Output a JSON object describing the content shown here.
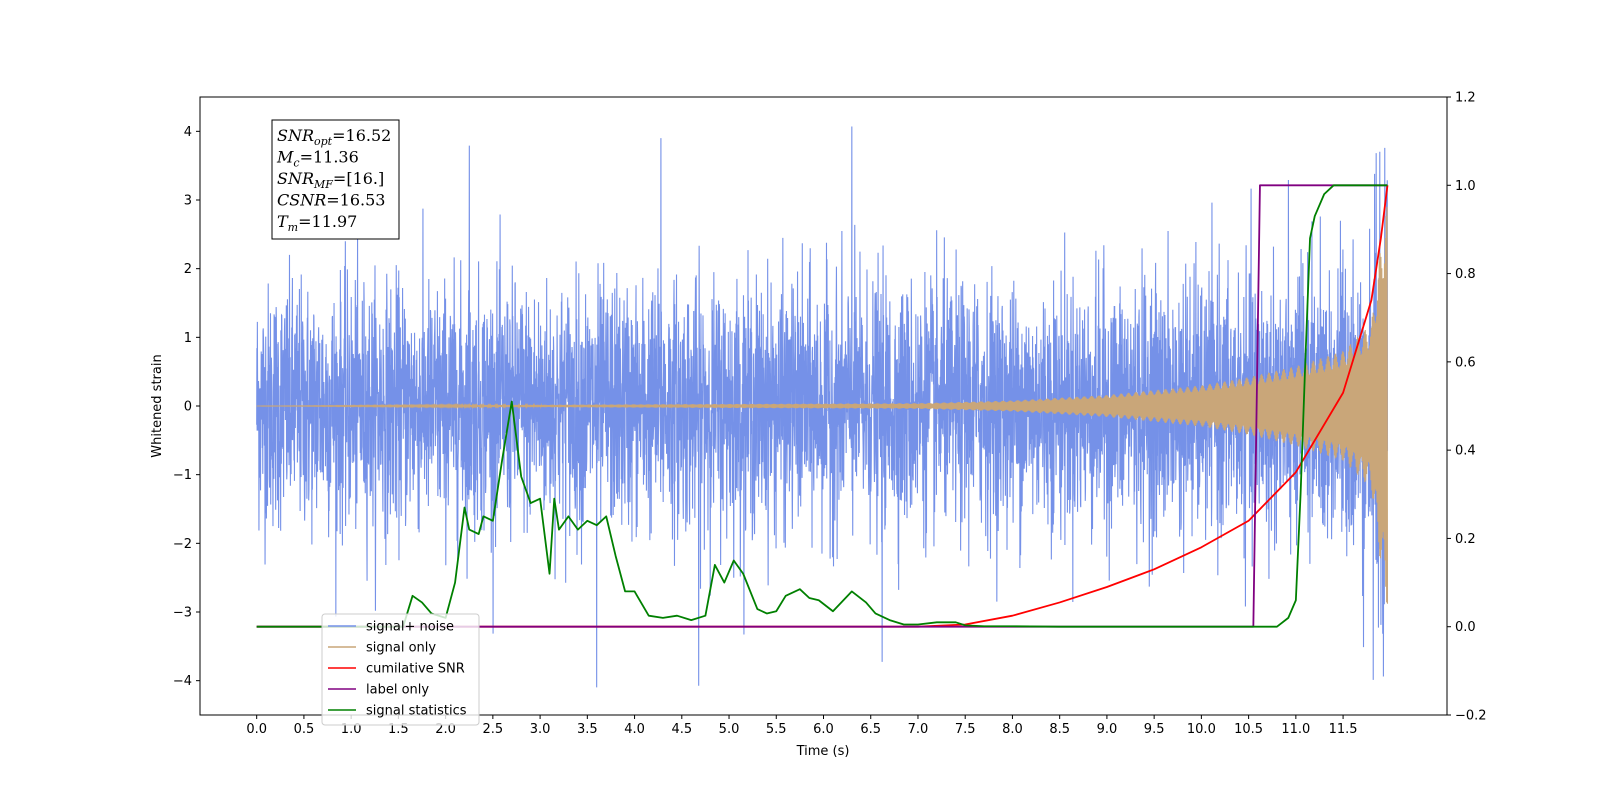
{
  "chart_data": {
    "type": "line",
    "title": "",
    "xlabel": "Time (s)",
    "ylabel": "Whitened strain",
    "ylabel_right": "",
    "xlim": [
      -0.6,
      12.6
    ],
    "ylim": [
      -4.5,
      4.5
    ],
    "ylim_right": [
      -0.2,
      1.2
    ],
    "x_ticks": [
      0.0,
      0.5,
      1.0,
      1.5,
      2.0,
      2.5,
      3.0,
      3.5,
      4.0,
      4.5,
      5.0,
      5.5,
      6.0,
      6.5,
      7.0,
      7.5,
      8.0,
      8.5,
      9.0,
      9.5,
      10.0,
      10.5,
      11.0,
      11.5
    ],
    "x_tick_labels": [
      "0.0",
      "0.5",
      "1.0",
      "1.5",
      "2.0",
      "2.5",
      "3.0",
      "3.5",
      "4.0",
      "4.5",
      "5.0",
      "5.5",
      "6.0",
      "6.5",
      "7.0",
      "7.5",
      "8.0",
      "8.5",
      "9.0",
      "9.5",
      "10.0",
      "10.5",
      "11.0",
      "11.5"
    ],
    "y_ticks": [
      -4,
      -3,
      -2,
      -1,
      0,
      1,
      2,
      3,
      4
    ],
    "y_tick_labels": [
      "−4",
      "−3",
      "−2",
      "−1",
      "0",
      "1",
      "2",
      "3",
      "4"
    ],
    "y_right_ticks": [
      -0.2,
      0.0,
      0.2,
      0.4,
      0.6,
      0.8,
      1.0,
      1.2
    ],
    "y_right_tick_labels": [
      "−0.2",
      "0.0",
      "0.2",
      "0.4",
      "0.6",
      "0.8",
      "1.0",
      "1.2"
    ],
    "grid": false,
    "legend_position": "lower-left",
    "annotation": {
      "lines": [
        {
          "base": "SNR",
          "sub": "opt",
          "value": "=16.52"
        },
        {
          "base": "M",
          "sub": "c",
          "value": "=11.36"
        },
        {
          "base": "SNR",
          "sub": "MF",
          "value": "=[16.]"
        },
        {
          "base": "CSNR",
          "sub": "",
          "value": "=16.53"
        },
        {
          "base": "T",
          "sub": "m",
          "value": "=11.97"
        }
      ]
    },
    "series": [
      {
        "name": "signal+ noise",
        "color": "#7591e8",
        "axis": "left",
        "style": "noise",
        "t_end": 11.97,
        "noise_std": 0.8,
        "notable_peaks": [
          [
            6.3,
            4.1
          ],
          [
            4.28,
            3.9
          ],
          [
            2.25,
            3.78
          ],
          [
            11.85,
            3.48
          ],
          [
            4.68,
            -4.05
          ],
          [
            3.6,
            -4.08
          ],
          [
            6.62,
            -3.75
          ],
          [
            11.82,
            -3.98
          ]
        ]
      },
      {
        "name": "signal only",
        "color": "#c9a679",
        "axis": "left",
        "style": "chirp",
        "t_c": 11.97,
        "amplitude_at": [
          [
            0.0,
            0.0
          ],
          [
            7.0,
            0.04
          ],
          [
            8.0,
            0.08
          ],
          [
            9.0,
            0.16
          ],
          [
            10.0,
            0.3
          ],
          [
            10.5,
            0.42
          ],
          [
            11.0,
            0.58
          ],
          [
            11.5,
            0.8
          ],
          [
            11.8,
            1.2
          ],
          [
            11.95,
            2.9
          ]
        ]
      },
      {
        "name": "cumilative SNR",
        "color": "#ff0000",
        "axis": "right",
        "x": [
          0.0,
          7.0,
          7.5,
          8.0,
          8.5,
          9.0,
          9.5,
          10.0,
          10.5,
          11.0,
          11.5,
          11.8,
          11.9,
          11.97
        ],
        "values": [
          0.0,
          0.0,
          0.005,
          0.025,
          0.055,
          0.09,
          0.13,
          0.18,
          0.24,
          0.35,
          0.53,
          0.74,
          0.88,
          1.0
        ]
      },
      {
        "name": "label only",
        "color": "#800080",
        "axis": "right",
        "x": [
          0.0,
          10.55,
          10.62,
          11.97
        ],
        "values": [
          0.0,
          0.0,
          1.0,
          1.0
        ]
      },
      {
        "name": "signal statistics",
        "color": "#008000",
        "axis": "right",
        "x": [
          0.0,
          1.55,
          1.65,
          1.75,
          1.85,
          2.0,
          2.1,
          2.2,
          2.25,
          2.35,
          2.4,
          2.5,
          2.6,
          2.7,
          2.8,
          2.9,
          3.0,
          3.1,
          3.15,
          3.2,
          3.3,
          3.4,
          3.5,
          3.6,
          3.7,
          3.8,
          3.9,
          4.0,
          4.15,
          4.3,
          4.45,
          4.6,
          4.75,
          4.85,
          4.95,
          5.05,
          5.15,
          5.3,
          5.4,
          5.5,
          5.6,
          5.75,
          5.85,
          5.95,
          6.1,
          6.3,
          6.45,
          6.55,
          6.7,
          6.85,
          7.0,
          7.2,
          7.4,
          7.5,
          7.7,
          8.0,
          8.5,
          9.0,
          10.0,
          10.8,
          10.92,
          11.0,
          11.05,
          11.1,
          11.15,
          11.2,
          11.3,
          11.4,
          11.5,
          11.97
        ],
        "values": [
          0.0,
          0.0,
          0.07,
          0.055,
          0.03,
          0.02,
          0.1,
          0.27,
          0.22,
          0.21,
          0.25,
          0.24,
          0.38,
          0.51,
          0.34,
          0.28,
          0.29,
          0.12,
          0.29,
          0.22,
          0.25,
          0.22,
          0.24,
          0.23,
          0.25,
          0.16,
          0.08,
          0.08,
          0.025,
          0.02,
          0.025,
          0.015,
          0.025,
          0.14,
          0.1,
          0.15,
          0.12,
          0.04,
          0.03,
          0.035,
          0.07,
          0.085,
          0.065,
          0.06,
          0.035,
          0.08,
          0.055,
          0.03,
          0.015,
          0.005,
          0.005,
          0.01,
          0.01,
          0.003,
          0.001,
          0.001,
          0.0,
          0.0,
          0.0,
          0.0,
          0.02,
          0.06,
          0.3,
          0.6,
          0.88,
          0.93,
          0.98,
          1.0,
          1.0,
          1.0
        ]
      }
    ]
  }
}
